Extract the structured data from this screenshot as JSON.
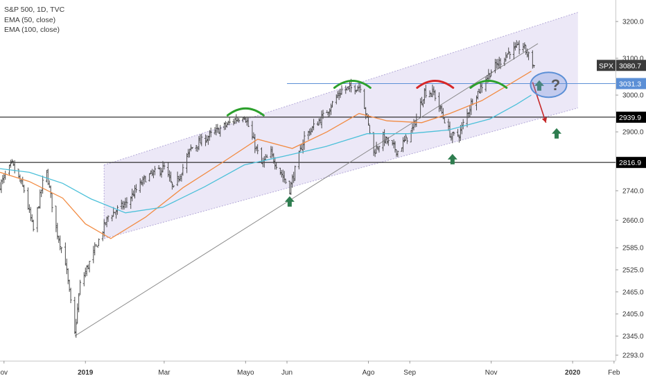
{
  "legend": {
    "title": "S&P 500, 1D, TVC",
    "ema50": "EMA (50, close)",
    "ema100": "EMA (100, close)"
  },
  "chart_data": {
    "type": "line",
    "title": "S&P 500, 1D, TVC",
    "subtitle": "",
    "xlabel": "",
    "ylabel": "",
    "grid": false,
    "legend_position": "top-left",
    "x_ticks": [
      {
        "label": "ov",
        "date": "2018-11-01"
      },
      {
        "label": "2019",
        "date": "2019-01-01",
        "bold": true
      },
      {
        "label": "Mar",
        "date": "2019-03-01"
      },
      {
        "label": "Mayo",
        "date": "2019-05-01"
      },
      {
        "label": "Jun",
        "date": "2019-06-01"
      },
      {
        "label": "Ago",
        "date": "2019-08-01"
      },
      {
        "label": "Sep",
        "date": "2019-09-01"
      },
      {
        "label": "Nov",
        "date": "2019-11-01"
      },
      {
        "label": "2020",
        "date": "2020-01-01",
        "bold": true
      },
      {
        "label": "Feb",
        "date": "2020-02-01"
      }
    ],
    "y_ticks": [
      3200.0,
      3100.0,
      3000.0,
      2900.0,
      2816.9,
      2740.0,
      2660.0,
      2585.0,
      2525.0,
      2465.0,
      2405.0,
      2345.0,
      2293.0
    ],
    "y_tick_labels": [
      "3200.0",
      "3100.0",
      "3000.0",
      "2900.0",
      "2816.9",
      "2740.0",
      "2660.0",
      "2585.0",
      "2525.0",
      "2465.0",
      "2405.0",
      "2345.0",
      "2293.0"
    ],
    "price_labels": [
      {
        "label": "SPX",
        "value": "3080.7",
        "price": 3080.7,
        "style": "dark"
      },
      {
        "label": "",
        "value": "3031.3",
        "price": 3031.3,
        "style": "blue"
      },
      {
        "label": "",
        "value": "2939.9",
        "price": 2939.9,
        "style": "black"
      },
      {
        "label": "",
        "value": "2816.9",
        "price": 2816.9,
        "style": "black"
      }
    ],
    "series": [
      {
        "name": "S&P 500",
        "color": "#4a4a4a",
        "points": [
          [
            "2018-10-29",
            2755
          ],
          [
            "2018-11-07",
            2812
          ],
          [
            "2018-11-16",
            2742
          ],
          [
            "2018-11-23",
            2633
          ],
          [
            "2018-11-30",
            2760
          ],
          [
            "2018-12-03",
            2790
          ],
          [
            "2018-12-10",
            2637
          ],
          [
            "2018-12-17",
            2546
          ],
          [
            "2018-12-24",
            2351
          ],
          [
            "2018-12-28",
            2485
          ],
          [
            "2019-01-10",
            2596
          ],
          [
            "2019-01-18",
            2670
          ],
          [
            "2019-01-31",
            2704
          ],
          [
            "2019-02-15",
            2775
          ],
          [
            "2019-03-01",
            2803
          ],
          [
            "2019-03-08",
            2743
          ],
          [
            "2019-03-21",
            2855
          ],
          [
            "2019-04-05",
            2892
          ],
          [
            "2019-04-23",
            2933
          ],
          [
            "2019-04-30",
            2946
          ],
          [
            "2019-05-13",
            2812
          ],
          [
            "2019-05-20",
            2840
          ],
          [
            "2019-06-03",
            2744
          ],
          [
            "2019-06-14",
            2886
          ],
          [
            "2019-06-28",
            2942
          ],
          [
            "2019-07-12",
            3013
          ],
          [
            "2019-07-26",
            3025
          ],
          [
            "2019-08-05",
            2845
          ],
          [
            "2019-08-12",
            2883
          ],
          [
            "2019-08-23",
            2847
          ],
          [
            "2019-09-03",
            2906
          ],
          [
            "2019-09-12",
            3009
          ],
          [
            "2019-09-19",
            3006
          ],
          [
            "2019-10-02",
            2887
          ],
          [
            "2019-10-08",
            2893
          ],
          [
            "2019-10-18",
            2986
          ],
          [
            "2019-11-01",
            3066
          ],
          [
            "2019-11-15",
            3120
          ],
          [
            "2019-11-25",
            3133
          ],
          [
            "2019-12-03",
            3080
          ]
        ]
      },
      {
        "name": "EMA (50, close)",
        "color": "#f28b42",
        "points": [
          [
            "2018-10-29",
            2790
          ],
          [
            "2018-11-20",
            2765
          ],
          [
            "2018-12-15",
            2720
          ],
          [
            "2019-01-01",
            2650
          ],
          [
            "2019-01-20",
            2610
          ],
          [
            "2019-02-15",
            2668
          ],
          [
            "2019-03-15",
            2748
          ],
          [
            "2019-04-15",
            2820
          ],
          [
            "2019-05-10",
            2880
          ],
          [
            "2019-06-05",
            2855
          ],
          [
            "2019-07-01",
            2900
          ],
          [
            "2019-07-25",
            2950
          ],
          [
            "2019-08-15",
            2930
          ],
          [
            "2019-09-10",
            2925
          ],
          [
            "2019-10-01",
            2950
          ],
          [
            "2019-10-25",
            2985
          ],
          [
            "2019-11-15",
            3030
          ],
          [
            "2019-12-01",
            3065
          ]
        ]
      },
      {
        "name": "EMA (100, close)",
        "color": "#4bc0d9",
        "points": [
          [
            "2018-10-29",
            2800
          ],
          [
            "2018-11-20",
            2790
          ],
          [
            "2018-12-15",
            2760
          ],
          [
            "2019-01-05",
            2718
          ],
          [
            "2019-01-31",
            2680
          ],
          [
            "2019-02-28",
            2695
          ],
          [
            "2019-03-31",
            2750
          ],
          [
            "2019-04-30",
            2810
          ],
          [
            "2019-05-31",
            2835
          ],
          [
            "2019-06-30",
            2860
          ],
          [
            "2019-07-31",
            2895
          ],
          [
            "2019-08-31",
            2895
          ],
          [
            "2019-09-30",
            2905
          ],
          [
            "2019-10-31",
            2935
          ],
          [
            "2019-11-20",
            2975
          ],
          [
            "2019-12-01",
            3000
          ]
        ]
      }
    ],
    "horizontal_levels": [
      {
        "price": 3031.3,
        "color": "#5b8fd6"
      },
      {
        "price": 2939.9,
        "color": "#000000"
      },
      {
        "price": 2816.9,
        "color": "#000000"
      }
    ],
    "channel": {
      "color": "#b4a9d8",
      "upper": [
        [
          "2019-01-15",
          2810
        ],
        [
          "2020-01-05",
          3225
        ]
      ],
      "lower": [
        [
          "2019-01-15",
          2610
        ],
        [
          "2020-01-05",
          2965
        ]
      ]
    },
    "trendline": {
      "color": "#888888",
      "points": [
        [
          "2018-12-24",
          2345
        ],
        [
          "2019-12-06",
          3140
        ]
      ]
    },
    "annotations": [
      {
        "type": "arc",
        "date": "2019-05-01",
        "price": 2960,
        "color": "#2ca02c"
      },
      {
        "type": "arc",
        "date": "2019-07-20",
        "price": 3035,
        "color": "#2ca02c"
      },
      {
        "type": "arc",
        "date": "2019-09-20",
        "price": 3035,
        "color": "#d62728"
      },
      {
        "type": "arc",
        "date": "2019-10-30",
        "price": 3035,
        "color": "#2ca02c"
      },
      {
        "type": "up-arrow",
        "date": "2019-06-03",
        "price": 2710,
        "color": "#2e7d4f"
      },
      {
        "type": "up-arrow",
        "date": "2019-10-03",
        "price": 2825,
        "color": "#2e7d4f"
      },
      {
        "type": "up-arrow",
        "date": "2019-12-20",
        "price": 2895,
        "color": "#2e7d4f"
      },
      {
        "type": "up-arrow",
        "date": "2019-12-07",
        "price": 3025,
        "color": "#2e7d4f"
      },
      {
        "type": "down-arrow",
        "from": [
          "2019-12-02",
          3035
        ],
        "to": [
          "2019-12-12",
          2925
        ],
        "color": "#c62828"
      },
      {
        "type": "ellipse",
        "date": "2019-12-14",
        "price": 3028,
        "color": "#5b8fd6",
        "label": "?"
      }
    ]
  }
}
